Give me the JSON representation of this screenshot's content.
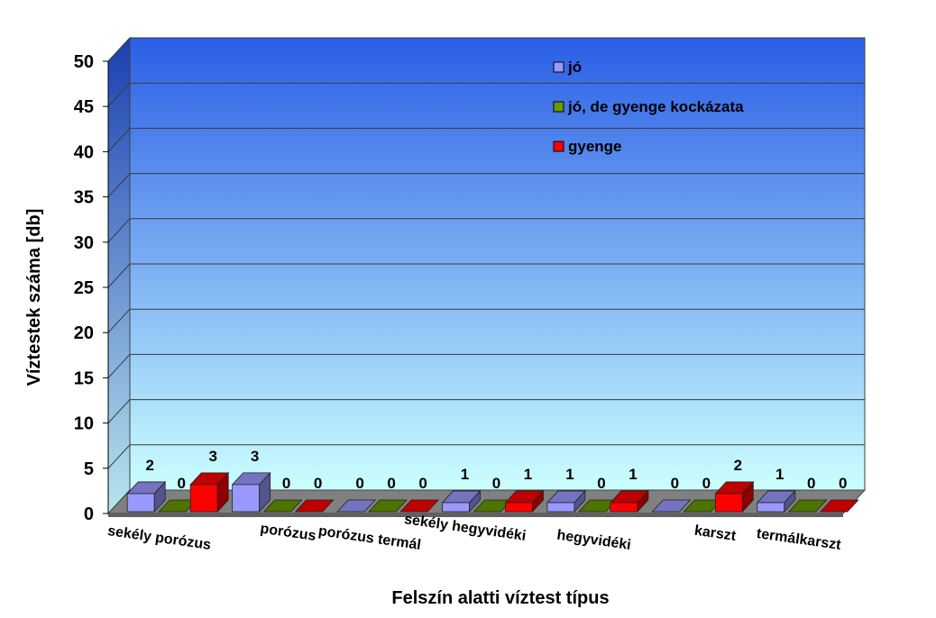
{
  "chart_data": {
    "type": "bar",
    "title": "",
    "xlabel": "Felszín alatti víztest típus",
    "ylabel": "Víztestek száma [db]",
    "ylim": [
      0,
      50
    ],
    "yticks": [
      0,
      5,
      10,
      15,
      20,
      25,
      30,
      35,
      40,
      45,
      50
    ],
    "grid": true,
    "legend_position": "top-right",
    "categories": [
      "sekély porózus",
      "porózus",
      "porózus termál",
      "sekély hegyvidéki",
      "hegyvidéki",
      "karszt",
      "termálkarszt"
    ],
    "series": [
      {
        "name": "jó",
        "color": "#9999ff",
        "values": [
          2,
          3,
          0,
          1,
          1,
          0,
          1
        ]
      },
      {
        "name": "jó, de gyenge kockázata",
        "color": "#669900",
        "values": [
          0,
          0,
          0,
          0,
          0,
          0,
          0
        ]
      },
      {
        "name": "gyenge",
        "color": "#ff0000",
        "values": [
          3,
          0,
          0,
          1,
          1,
          2,
          0
        ]
      }
    ],
    "colors": {
      "wall_top": "#2a5ee6",
      "wall_bottom": "#ccffff",
      "side_wall_top": "#1a3fb0",
      "side_wall_bottom": "#b8e6ee",
      "floor": "#808080"
    }
  }
}
